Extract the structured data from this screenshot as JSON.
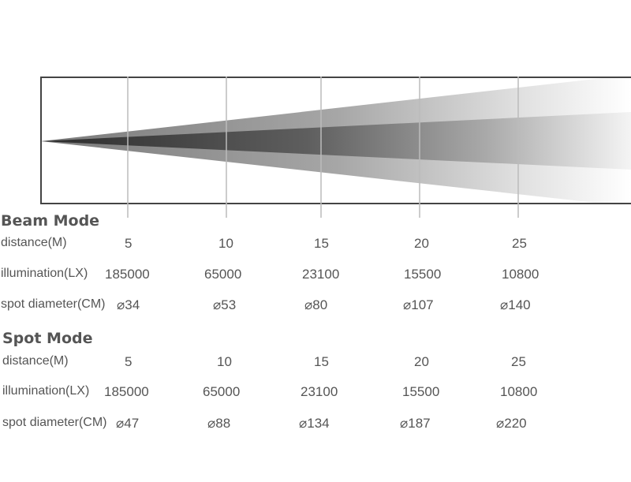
{
  "beam_mode": {
    "title": "Beam Mode",
    "rows": [
      {
        "label": "distance(M)",
        "values": [
          "5",
          "10",
          "15",
          "20",
          "25"
        ]
      },
      {
        "label": "illumination(LX)",
        "values": [
          "185000",
          "65000",
          "23100",
          "15500",
          "10800"
        ]
      },
      {
        "label": "spot diameter(CM)",
        "values": [
          "⌀34",
          "⌀53",
          "⌀80",
          "⌀107",
          "⌀140"
        ]
      }
    ]
  },
  "spot_mode": {
    "title": "Spot Mode",
    "rows": [
      {
        "label": "distance(M)",
        "values": [
          "5",
          "10",
          "15",
          "20",
          "25"
        ]
      },
      {
        "label": "illumination(LX)",
        "values": [
          "185000",
          "65000",
          "23100",
          "15500",
          "10800"
        ]
      },
      {
        "label": "spot diameter(CM)",
        "values": [
          "⌀47",
          "⌀88",
          "⌀134",
          "⌀187",
          "⌀220"
        ]
      }
    ]
  },
  "colors": {
    "text": "#555555",
    "frame": "#444444",
    "beam_core": "#3a3a3a",
    "beam_outer": "#8a8a8a",
    "marker_line": "#bbbbbb"
  }
}
